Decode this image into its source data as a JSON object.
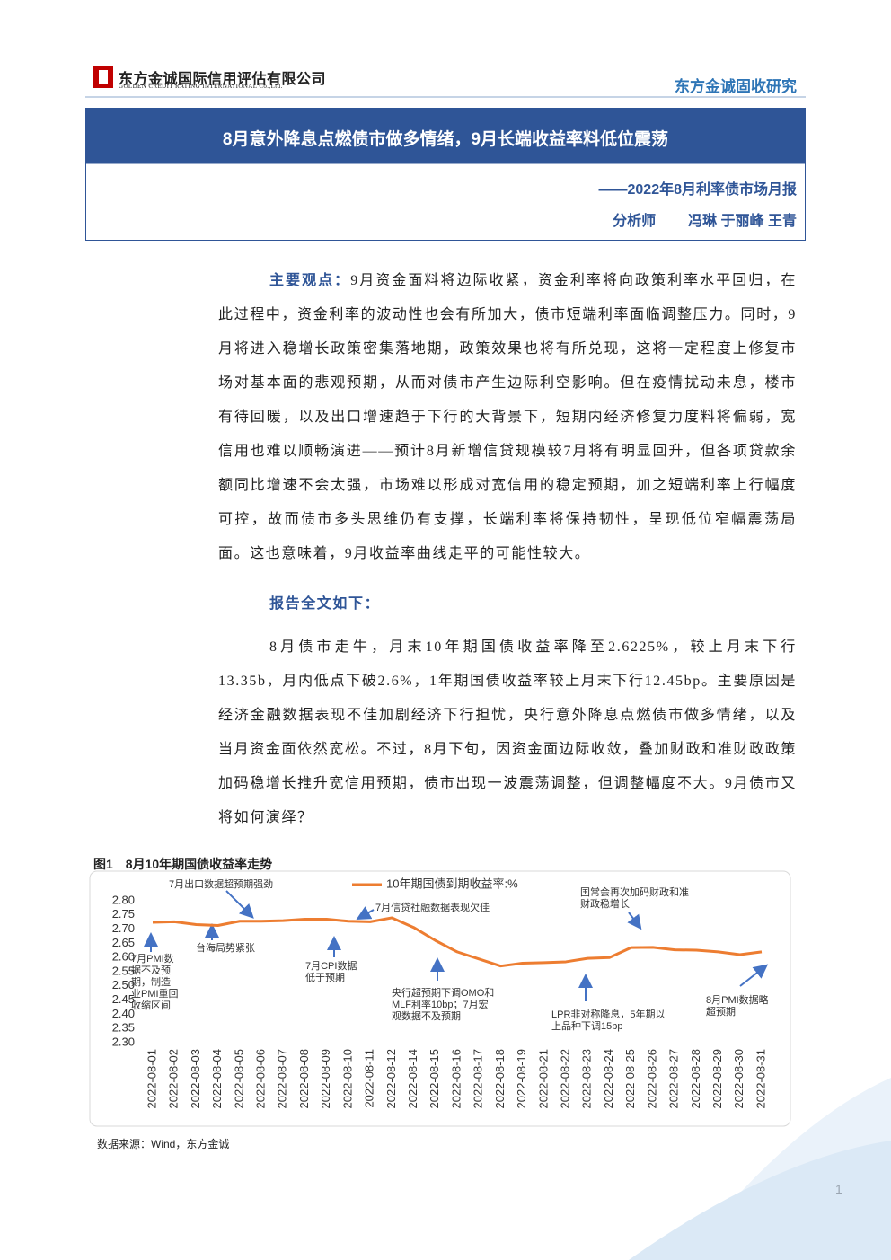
{
  "header": {
    "company": "东方金诚国际信用评估有限公司",
    "company_en": "GOLDEN CREDIT RATING INTERNATIONAL Co.,Ltd.",
    "column": "东方金诚固收研究"
  },
  "title_box": {
    "title": "8月意外降息点燃债市做多情绪，9月长端收益率料低位震荡",
    "subtitle": "——2022年8月利率债市场月报",
    "analyst_label": "分析师",
    "analysts": "冯琳 于丽峰 王青"
  },
  "body": {
    "key_points_label": "主要观点：",
    "key_points": "9月资金面料将边际收紧，资金利率将向政策利率水平回归，在此过程中，资金利率的波动性也会有所加大，债市短端利率面临调整压力。同时，9月将进入稳增长政策密集落地期，政策效果也将有所兑现，这将一定程度上修复市场对基本面的悲观预期，从而对债市产生边际利空影响。但在疫情扰动未息，楼市有待回暖，以及出口增速趋于下行的大背景下，短期内经济修复力度料将偏弱，宽信用也难以顺畅演进——预计8月新增信贷规模较7月将有明显回升，但各项贷款余额同比增速不会太强，市场难以形成对宽信用的稳定预期，加之短端利率上行幅度可控，故而债市多头思维仍有支撑，长端利率将保持韧性，呈现低位窄幅震荡局面。这也意味着，9月收益率曲线走平的可能性较大。",
    "full_text_label": "报告全文如下：",
    "paragraph": "8月债市走牛，月末10年期国债收益率降至2.6225%，较上月末下行13.35b，月内低点下破2.6%，1年期国债收益率较上月末下行12.45bp。主要原因是经济金融数据表现不佳加剧经济下行担忧，央行意外降息点燃债市做多情绪，以及当月资金面依然宽松。不过，8月下旬，因资金面边际收敛，叠加财政和准财政政策加码稳增长推升宽信用预期，债市出现一波震荡调整，但调整幅度不大。9月债市又将如何演绎？"
  },
  "figure": {
    "caption": "图1　8月10年期国债收益率走势",
    "source": "数据来源：Wind，东方金诚"
  },
  "chart_data": {
    "type": "line",
    "categories": [
      "2022-08-01",
      "2022-08-02",
      "2022-08-03",
      "2022-08-04",
      "2022-08-05",
      "2022-08-06",
      "2022-08-07",
      "2022-08-08",
      "2022-08-09",
      "2022-08-10",
      "2022-08-11",
      "2022-08-12",
      "2022-08-14",
      "2022-08-15",
      "2022-08-16",
      "2022-08-17",
      "2022-08-18",
      "2022-08-19",
      "2022-08-21",
      "2022-08-22",
      "2022-08-23",
      "2022-08-24",
      "2022-08-25",
      "2022-08-26",
      "2022-08-27",
      "2022-08-28",
      "2022-08-29",
      "2022-08-30",
      "2022-08-31"
    ],
    "series": [
      {
        "name": "10年期国债到期收益率:%",
        "color": "#ed7d31",
        "values": [
          2.724,
          2.726,
          2.716,
          2.713,
          2.728,
          2.728,
          2.73,
          2.735,
          2.735,
          2.728,
          2.726,
          2.74,
          2.706,
          2.66,
          2.62,
          2.595,
          2.57,
          2.58,
          2.582,
          2.585,
          2.597,
          2.6,
          2.635,
          2.636,
          2.627,
          2.626,
          2.62,
          2.61,
          2.62
        ]
      }
    ],
    "ylim": [
      2.3,
      2.8
    ],
    "yticks": [
      {
        "value": 2.3,
        "label": "2.30"
      },
      2.35,
      {
        "value": 2.4,
        "label": "2.40"
      },
      2.45,
      {
        "value": 2.5,
        "label": "2.50"
      },
      2.55,
      {
        "value": 2.6,
        "label": "2.60"
      },
      2.65,
      {
        "value": 2.7,
        "label": "2.70"
      },
      2.75,
      {
        "value": 2.8,
        "label": "2.80"
      }
    ],
    "grid": false,
    "annotations": [
      "7月PMI数据不及预期，制造业PMI重回收缩区间",
      "台海局势紧张",
      "7月出口数据超预期强劲",
      "7月CPI数据低于预期",
      "7月信贷社融数据表现欠佳",
      "央行超预期下调OMO和MLF利率10bp；7月宏观数据不及预期",
      "LPR非对称降息，5年期以上品种下调15bp",
      "国常会再次加码财政和准财政稳增长",
      "8月PMI数据略超预期"
    ]
  },
  "page_number": "1"
}
